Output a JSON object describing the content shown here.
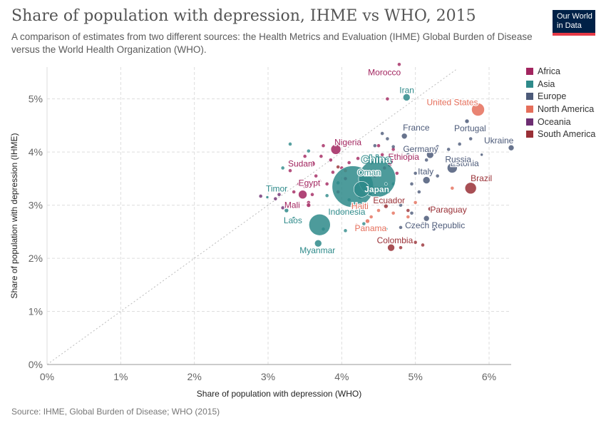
{
  "title": "Share of population with depression, IHME vs WHO, 2015",
  "subtitle": "A comparison of estimates from two different sources: the Health Metrics and Evaluation (IHME) Global Burden of Disease versus the World Health Organization (WHO).",
  "logo": {
    "line1": "Our World",
    "line2": "in Data"
  },
  "source": "Source: IHME, Global Burden of Disease; WHO (2015)",
  "colors": {
    "Africa": "#a2255f",
    "Asia": "#2e8a8a",
    "Europe": "#4c5a79",
    "North America": "#e56e5a",
    "Oceania": "#6d2e72",
    "South America": "#993036"
  },
  "chart_data": {
    "type": "scatter",
    "xlabel": "Share of population with depression (WHO)",
    "ylabel": "Share of population with depression (IHME)",
    "xlim": [
      0,
      6.3
    ],
    "ylim": [
      0,
      5.6
    ],
    "xticks": [
      "0%",
      "1%",
      "2%",
      "3%",
      "4%",
      "5%",
      "6%"
    ],
    "yticks": [
      "0%",
      "1%",
      "2%",
      "3%",
      "4%",
      "5%"
    ],
    "grid": true,
    "legend_position": "right",
    "legend": [
      "Africa",
      "Asia",
      "Europe",
      "North America",
      "Oceania",
      "South America"
    ],
    "points": [
      {
        "label": "Morocco",
        "region": "Africa",
        "x": 4.55,
        "y": 5.5,
        "size": 3
      },
      {
        "label": "Iran",
        "region": "Asia",
        "x": 4.88,
        "y": 5.03,
        "size": 5
      },
      {
        "label": "United States",
        "region": "North America",
        "x": 5.85,
        "y": 4.8,
        "size": 9
      },
      {
        "label": "Portugal",
        "region": "Europe",
        "x": 5.7,
        "y": 4.58,
        "size": 3
      },
      {
        "label": "France",
        "region": "Europe",
        "x": 4.85,
        "y": 4.3,
        "size": 4
      },
      {
        "label": "Nigeria",
        "region": "Africa",
        "x": 3.92,
        "y": 4.05,
        "size": 7
      },
      {
        "label": "Germany",
        "region": "Europe",
        "x": 5.2,
        "y": 3.95,
        "size": 5
      },
      {
        "label": "Ukraine",
        "region": "Europe",
        "x": 6.3,
        "y": 4.08,
        "size": 4
      },
      {
        "label": "Estonia",
        "region": "Europe",
        "x": 5.9,
        "y": 3.95,
        "size": 2
      },
      {
        "label": "Ethiopia",
        "region": "Africa",
        "x": 4.65,
        "y": 3.83,
        "size": 5
      },
      {
        "label": "Sudan",
        "region": "Africa",
        "x": 3.6,
        "y": 3.78,
        "size": 4
      },
      {
        "label": "Russia",
        "region": "Europe",
        "x": 5.5,
        "y": 3.7,
        "size": 7
      },
      {
        "label": "China",
        "region": "Asia",
        "x": 4.48,
        "y": 3.5,
        "size": 26
      },
      {
        "label": "Italy",
        "region": "Europe",
        "x": 5.15,
        "y": 3.47,
        "size": 5
      },
      {
        "label": "Oman",
        "region": "Asia",
        "x": 4.6,
        "y": 3.4,
        "size": 2
      },
      {
        "label": "India",
        "region": "Asia",
        "x": 4.15,
        "y": 3.35,
        "size": 29
      },
      {
        "label": "Japan",
        "region": "Asia",
        "x": 4.27,
        "y": 3.3,
        "size": 11
      },
      {
        "label": "Brazil",
        "region": "South America",
        "x": 5.75,
        "y": 3.32,
        "size": 8
      },
      {
        "label": "Egypt",
        "region": "Africa",
        "x": 3.47,
        "y": 3.2,
        "size": 6
      },
      {
        "label": "Timor",
        "region": "Asia",
        "x": 2.99,
        "y": 3.15,
        "size": 2
      },
      {
        "label": "Mali",
        "region": "Africa",
        "x": 3.55,
        "y": 3.0,
        "size": 3
      },
      {
        "label": "Haiti",
        "region": "North America",
        "x": 4.15,
        "y": 2.98,
        "size": 3
      },
      {
        "label": "Ecuador",
        "region": "South America",
        "x": 4.6,
        "y": 2.98,
        "size": 3
      },
      {
        "label": "Paraguay",
        "region": "South America",
        "x": 5.2,
        "y": 2.93,
        "size": 3
      },
      {
        "label": "Laos",
        "region": "Asia",
        "x": 3.25,
        "y": 2.9,
        "size": 3
      },
      {
        "label": "Indonesia",
        "region": "Asia",
        "x": 3.7,
        "y": 2.63,
        "size": 15
      },
      {
        "label": "Panama",
        "region": "North America",
        "x": 4.35,
        "y": 2.7,
        "size": 3
      },
      {
        "label": "Czech Republic",
        "region": "Europe",
        "x": 5.15,
        "y": 2.75,
        "size": 4
      },
      {
        "label": "Myanmar",
        "region": "Asia",
        "x": 3.68,
        "y": 2.28,
        "size": 5
      },
      {
        "label": "Colombia",
        "region": "South America",
        "x": 4.67,
        "y": 2.2,
        "size": 5
      }
    ],
    "unlabeled": [
      [
        "Africa",
        3.95,
        4.15
      ],
      [
        "Africa",
        3.75,
        4.12
      ],
      [
        "Africa",
        4.2,
        4.18
      ],
      [
        "Africa",
        3.5,
        3.92
      ],
      [
        "Africa",
        3.85,
        3.85
      ],
      [
        "Africa",
        4.0,
        3.7
      ],
      [
        "Africa",
        3.3,
        3.65
      ],
      [
        "Africa",
        3.65,
        3.55
      ],
      [
        "Africa",
        4.3,
        3.6
      ],
      [
        "Africa",
        4.45,
        3.55
      ],
      [
        "Africa",
        4.05,
        3.5
      ],
      [
        "Africa",
        3.8,
        3.4
      ],
      [
        "Africa",
        3.42,
        3.4
      ],
      [
        "Africa",
        3.6,
        3.2
      ],
      [
        "Africa",
        3.95,
        3.25
      ],
      [
        "Africa",
        4.35,
        3.62
      ],
      [
        "Africa",
        4.5,
        4.12
      ],
      [
        "Africa",
        4.7,
        4.05
      ],
      [
        "Africa",
        4.55,
        3.95
      ],
      [
        "Africa",
        3.88,
        3.62
      ],
      [
        "Africa",
        3.7,
        3.45
      ],
      [
        "Africa",
        3.5,
        3.35
      ],
      [
        "Africa",
        4.58,
        3.7
      ],
      [
        "Africa",
        4.75,
        3.6
      ],
      [
        "Africa",
        3.35,
        3.25
      ],
      [
        "Africa",
        3.55,
        3.05
      ],
      [
        "Africa",
        4.1,
        3.8
      ],
      [
        "Africa",
        3.72,
        3.92
      ],
      [
        "Africa",
        4.22,
        3.88
      ],
      [
        "Africa",
        4.65,
        3.75
      ],
      [
        "Africa",
        4.78,
        5.65
      ],
      [
        "Africa",
        4.62,
        5.0
      ],
      [
        "Africa",
        4.8,
        3.9
      ],
      [
        "Asia",
        3.2,
        3.7
      ],
      [
        "Asia",
        3.3,
        4.15
      ],
      [
        "Asia",
        3.55,
        4.02
      ],
      [
        "Asia",
        4.1,
        3.1
      ],
      [
        "Asia",
        4.25,
        3.15
      ],
      [
        "Asia",
        4.0,
        2.88
      ],
      [
        "Asia",
        3.75,
        2.55
      ],
      [
        "Asia",
        4.05,
        2.52
      ],
      [
        "Asia",
        4.3,
        2.65
      ],
      [
        "Asia",
        4.6,
        2.55
      ],
      [
        "Asia",
        3.95,
        3.42
      ],
      [
        "Asia",
        4.7,
        3.4
      ],
      [
        "Asia",
        3.35,
        2.75
      ],
      [
        "Asia",
        4.4,
        3.25
      ],
      [
        "Asia",
        3.8,
        3.18
      ],
      [
        "Europe",
        4.45,
        4.12
      ],
      [
        "Europe",
        4.62,
        4.25
      ],
      [
        "Europe",
        4.7,
        4.1
      ],
      [
        "Europe",
        5.05,
        4.05
      ],
      [
        "Europe",
        4.9,
        3.95
      ],
      [
        "Europe",
        5.3,
        4.1
      ],
      [
        "Europe",
        5.45,
        4.05
      ],
      [
        "Europe",
        5.6,
        4.15
      ],
      [
        "Europe",
        5.75,
        4.25
      ],
      [
        "Europe",
        5.0,
        3.6
      ],
      [
        "Europe",
        4.95,
        3.4
      ],
      [
        "Europe",
        5.3,
        3.55
      ],
      [
        "Europe",
        5.05,
        3.25
      ],
      [
        "Europe",
        4.8,
        3.0
      ],
      [
        "Europe",
        4.95,
        2.85
      ],
      [
        "Europe",
        5.1,
        2.65
      ],
      [
        "Europe",
        4.95,
        2.6
      ],
      [
        "Europe",
        4.8,
        2.58
      ],
      [
        "Europe",
        5.25,
        2.55
      ],
      [
        "Europe",
        4.85,
        4.5
      ],
      [
        "Europe",
        4.55,
        4.35
      ],
      [
        "Europe",
        5.15,
        3.85
      ],
      [
        "Europe",
        4.4,
        3.8
      ],
      [
        "North America",
        4.5,
        2.9
      ],
      [
        "North America",
        4.7,
        2.85
      ],
      [
        "North America",
        4.9,
        2.78
      ],
      [
        "North America",
        4.2,
        2.62
      ],
      [
        "North America",
        5.5,
        3.32
      ],
      [
        "North America",
        4.05,
        3.65
      ],
      [
        "North America",
        5.0,
        3.05
      ],
      [
        "North America",
        4.4,
        2.78
      ],
      [
        "Oceania",
        2.9,
        3.17
      ],
      [
        "Oceania",
        3.1,
        3.12
      ],
      [
        "Oceania",
        3.15,
        3.2
      ],
      [
        "Oceania",
        3.2,
        2.95
      ],
      [
        "South America",
        4.35,
        3.3
      ],
      [
        "South America",
        4.7,
        3.08
      ],
      [
        "South America",
        4.55,
        3.05
      ],
      [
        "South America",
        4.8,
        2.2
      ],
      [
        "South America",
        5.0,
        2.3
      ],
      [
        "South America",
        5.1,
        2.25
      ],
      [
        "South America",
        4.9,
        2.9
      ],
      [
        "South America",
        3.95,
        3.72
      ]
    ]
  }
}
